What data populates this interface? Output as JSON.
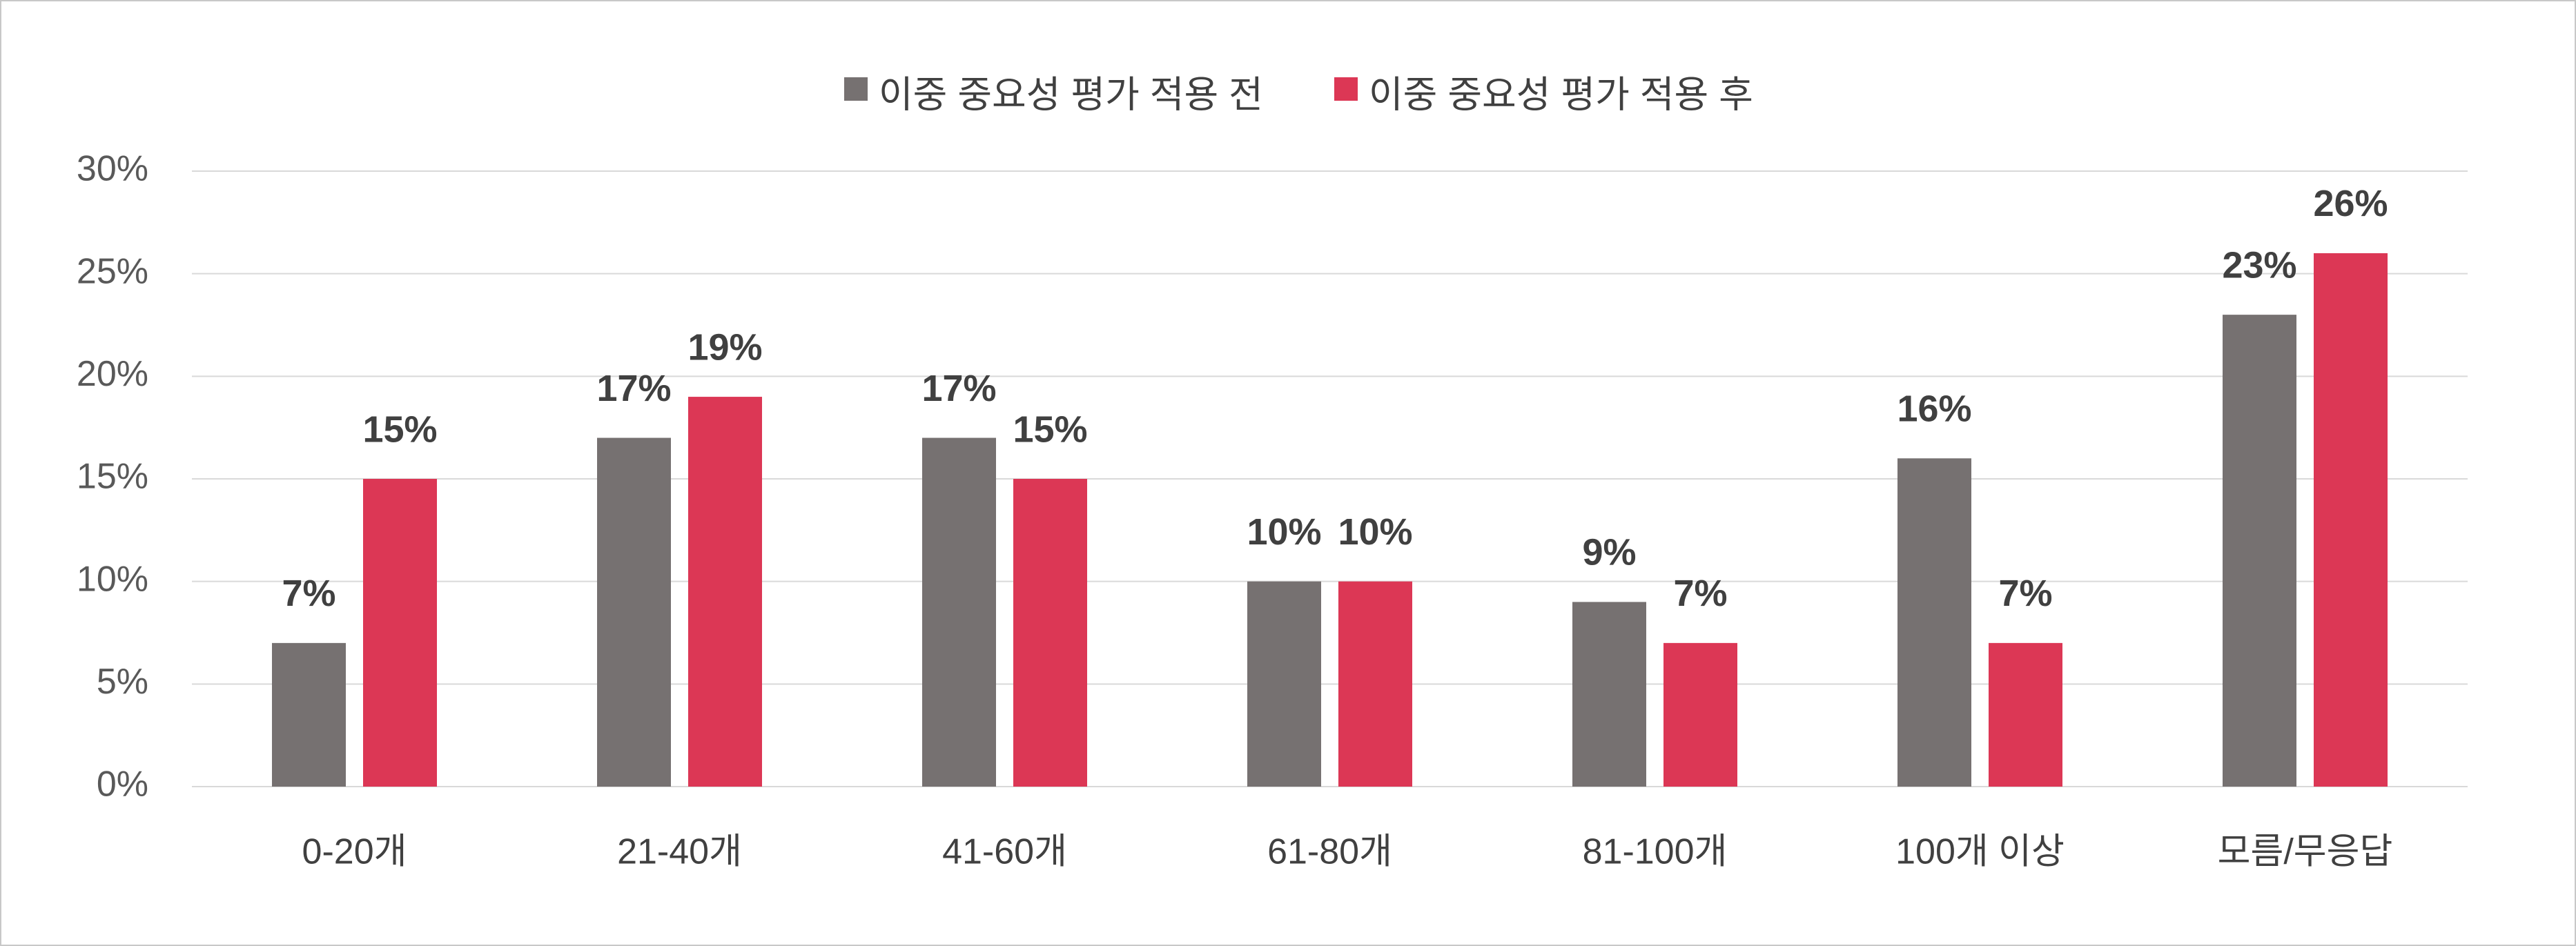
{
  "chart_data": {
    "type": "bar",
    "categories": [
      "0-20개",
      "21-40개",
      "41-60개",
      "61-80개",
      "81-100개",
      "100개 이상",
      "모름/무응답"
    ],
    "series": [
      {
        "name": "이중 중요성 평가 적용 전",
        "color": "#767171",
        "values": [
          7,
          17,
          17,
          10,
          9,
          16,
          23
        ],
        "value_labels": [
          "7%",
          "17%",
          "17%",
          "10%",
          "9%",
          "16%",
          "23%"
        ]
      },
      {
        "name": "이중 중요성 평가 적용 후",
        "color": "#dc3755",
        "values": [
          15,
          19,
          15,
          10,
          7,
          7,
          26
        ],
        "value_labels": [
          "15%",
          "19%",
          "15%",
          "10%",
          "7%",
          "7%",
          "26%"
        ]
      }
    ],
    "ylim": [
      0,
      30
    ],
    "yticks": [
      {
        "value": 0,
        "label": "0%"
      },
      {
        "value": 5,
        "label": "5%"
      },
      {
        "value": 10,
        "label": "10%"
      },
      {
        "value": 15,
        "label": "15%"
      },
      {
        "value": 20,
        "label": "20%"
      },
      {
        "value": 25,
        "label": "25%"
      },
      {
        "value": 30,
        "label": "30%"
      }
    ],
    "grid": true,
    "legend": "top"
  }
}
